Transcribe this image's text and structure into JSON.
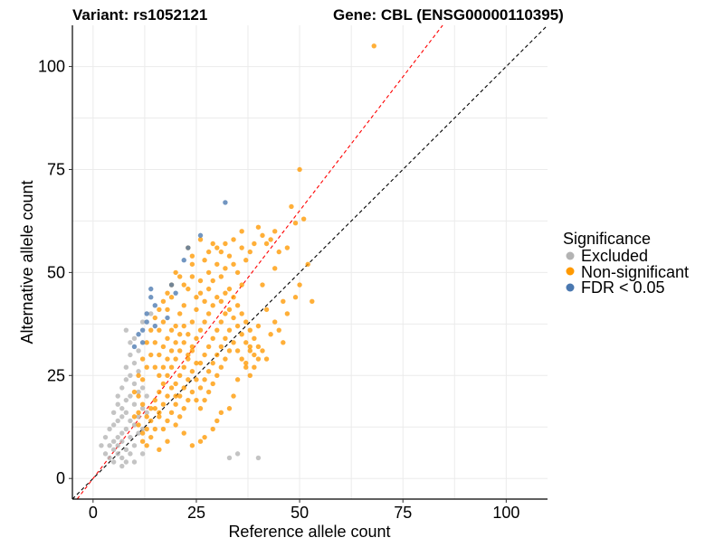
{
  "chart_data": {
    "type": "scatter",
    "title_left": "Variant: rs1052121",
    "title_right": "Gene: CBL (ENSG00000110395)",
    "xlabel": "Reference allele count",
    "ylabel": "Alternative allele count",
    "xlim": [
      -5,
      110
    ],
    "ylim": [
      -5,
      110
    ],
    "xticks": [
      0,
      25,
      50,
      75,
      100
    ],
    "yticks": [
      0,
      25,
      50,
      75,
      100
    ],
    "grid": true,
    "legend": {
      "title": "Significance",
      "placement": "right",
      "entries": [
        {
          "label": "Excluded",
          "color": "#b3b3b3"
        },
        {
          "label": "Non-significant",
          "color": "#ff9900"
        },
        {
          "label": "FDR < 0.05",
          "color": "#4a78b0"
        }
      ]
    },
    "reference_lines": [
      {
        "name": "identity",
        "slope": 1,
        "intercept": 0,
        "color": "#000000",
        "dash": true
      },
      {
        "name": "fit",
        "slope": 1.3,
        "intercept": 0,
        "color": "#ff0000",
        "dash": true
      }
    ],
    "series": [
      {
        "name": "Excluded",
        "color": "#b3b3b3",
        "points": [
          [
            2,
            8
          ],
          [
            3,
            6
          ],
          [
            3,
            10
          ],
          [
            4,
            5
          ],
          [
            4,
            8
          ],
          [
            4,
            12
          ],
          [
            5,
            4
          ],
          [
            5,
            7
          ],
          [
            5,
            9
          ],
          [
            5,
            13
          ],
          [
            5,
            16
          ],
          [
            6,
            6
          ],
          [
            6,
            8
          ],
          [
            6,
            10
          ],
          [
            6,
            14
          ],
          [
            6,
            18
          ],
          [
            6,
            20
          ],
          [
            7,
            3
          ],
          [
            7,
            5
          ],
          [
            7,
            9
          ],
          [
            7,
            11
          ],
          [
            7,
            15
          ],
          [
            7,
            17
          ],
          [
            7,
            22
          ],
          [
            8,
            4
          ],
          [
            8,
            7
          ],
          [
            8,
            12
          ],
          [
            8,
            16
          ],
          [
            8,
            19
          ],
          [
            8,
            24
          ],
          [
            8,
            27
          ],
          [
            9,
            6
          ],
          [
            9,
            10
          ],
          [
            9,
            14
          ],
          [
            9,
            20
          ],
          [
            9,
            25
          ],
          [
            9,
            30
          ],
          [
            10,
            8
          ],
          [
            10,
            13
          ],
          [
            10,
            18
          ],
          [
            10,
            23
          ],
          [
            10,
            28
          ],
          [
            10,
            34
          ],
          [
            11,
            11
          ],
          [
            11,
            15
          ],
          [
            11,
            21
          ],
          [
            11,
            26
          ],
          [
            12,
            12
          ],
          [
            12,
            17
          ],
          [
            12,
            22
          ],
          [
            12,
            38
          ],
          [
            13,
            16
          ],
          [
            13,
            20
          ],
          [
            14,
            40
          ],
          [
            9,
            33
          ],
          [
            11,
            31
          ],
          [
            33,
            5
          ],
          [
            35,
            6
          ],
          [
            40,
            5
          ],
          [
            8,
            36
          ],
          [
            12,
            6
          ],
          [
            10,
            4
          ]
        ]
      },
      {
        "name": "Non-significant",
        "color": "#ff9900",
        "points": [
          [
            68,
            105
          ],
          [
            50,
            75
          ],
          [
            48,
            66
          ],
          [
            51,
            63
          ],
          [
            49,
            62
          ],
          [
            47,
            56
          ],
          [
            52,
            52
          ],
          [
            53,
            43
          ],
          [
            44,
            51
          ],
          [
            45,
            55
          ],
          [
            42,
            57
          ],
          [
            43,
            58
          ],
          [
            44,
            60
          ],
          [
            40,
            61
          ],
          [
            41,
            59
          ],
          [
            39,
            57
          ],
          [
            38,
            55
          ],
          [
            37,
            53
          ],
          [
            36,
            56
          ],
          [
            35,
            50
          ],
          [
            34,
            52
          ],
          [
            33,
            54
          ],
          [
            32,
            51
          ],
          [
            30,
            52
          ],
          [
            29,
            48
          ],
          [
            28,
            50
          ],
          [
            31,
            49
          ],
          [
            36,
            47
          ],
          [
            41,
            47
          ],
          [
            46,
            43
          ],
          [
            47,
            40
          ],
          [
            49,
            44
          ],
          [
            50,
            47
          ],
          [
            42,
            41
          ],
          [
            44,
            38
          ],
          [
            45,
            36
          ],
          [
            46,
            33
          ],
          [
            40,
            37
          ],
          [
            43,
            35
          ],
          [
            38,
            32
          ],
          [
            39,
            30
          ],
          [
            37,
            28
          ],
          [
            35,
            24
          ],
          [
            34,
            20
          ],
          [
            33,
            17
          ],
          [
            31,
            16
          ],
          [
            30,
            14
          ],
          [
            29,
            12
          ],
          [
            27,
            10
          ],
          [
            26,
            9
          ],
          [
            24,
            8
          ],
          [
            22,
            11
          ],
          [
            20,
            13
          ],
          [
            18,
            9
          ],
          [
            16,
            7
          ],
          [
            14,
            10
          ],
          [
            13,
            8
          ],
          [
            15,
            12
          ],
          [
            12,
            9
          ],
          [
            11,
            13
          ],
          [
            23,
            46
          ],
          [
            24,
            49
          ],
          [
            25,
            44
          ],
          [
            22,
            42
          ],
          [
            21,
            40
          ],
          [
            19,
            44
          ],
          [
            18,
            41
          ],
          [
            17,
            38
          ],
          [
            16,
            36
          ],
          [
            15,
            39
          ],
          [
            20,
            37
          ],
          [
            26,
            45
          ],
          [
            27,
            43
          ],
          [
            28,
            46
          ],
          [
            25,
            41
          ],
          [
            24,
            38
          ],
          [
            23,
            35
          ],
          [
            22,
            33
          ],
          [
            21,
            31
          ],
          [
            20,
            29
          ],
          [
            19,
            27
          ],
          [
            18,
            25
          ],
          [
            17,
            23
          ],
          [
            16,
            21
          ],
          [
            15,
            19
          ],
          [
            14,
            17
          ],
          [
            13,
            15
          ],
          [
            12,
            18
          ],
          [
            11,
            20
          ],
          [
            12,
            24
          ],
          [
            13,
            27
          ],
          [
            14,
            30
          ],
          [
            15,
            33
          ],
          [
            16,
            30
          ],
          [
            17,
            32
          ],
          [
            18,
            34
          ],
          [
            19,
            36
          ],
          [
            20,
            33
          ],
          [
            21,
            35
          ],
          [
            22,
            37
          ],
          [
            23,
            30
          ],
          [
            24,
            32
          ],
          [
            25,
            34
          ],
          [
            26,
            36
          ],
          [
            27,
            38
          ],
          [
            28,
            40
          ],
          [
            29,
            42
          ],
          [
            30,
            44
          ],
          [
            31,
            43
          ],
          [
            32,
            45
          ],
          [
            33,
            46
          ],
          [
            34,
            44
          ],
          [
            35,
            42
          ],
          [
            36,
            40
          ],
          [
            37,
            38
          ],
          [
            38,
            36
          ],
          [
            39,
            34
          ],
          [
            40,
            32
          ],
          [
            41,
            31
          ],
          [
            42,
            29
          ],
          [
            26,
            28
          ],
          [
            27,
            30
          ],
          [
            28,
            32
          ],
          [
            29,
            34
          ],
          [
            30,
            36
          ],
          [
            31,
            38
          ],
          [
            32,
            40
          ],
          [
            33,
            41
          ],
          [
            34,
            39
          ],
          [
            35,
            37
          ],
          [
            36,
            35
          ],
          [
            37,
            33
          ],
          [
            38,
            31
          ],
          [
            24,
            26
          ],
          [
            25,
            28
          ],
          [
            23,
            24
          ],
          [
            22,
            22
          ],
          [
            21,
            20
          ],
          [
            20,
            18
          ],
          [
            19,
            16
          ],
          [
            18,
            14
          ],
          [
            17,
            12
          ],
          [
            16,
            15
          ],
          [
            15,
            17
          ],
          [
            14,
            14
          ],
          [
            13,
            12
          ],
          [
            12,
            11
          ],
          [
            11,
            16
          ],
          [
            10,
            15
          ],
          [
            10,
            21
          ],
          [
            11,
            25
          ],
          [
            12,
            29
          ],
          [
            13,
            33
          ],
          [
            14,
            36
          ],
          [
            15,
            27
          ],
          [
            16,
            25
          ],
          [
            17,
            27
          ],
          [
            18,
            29
          ],
          [
            19,
            31
          ],
          [
            20,
            23
          ],
          [
            21,
            25
          ],
          [
            22,
            27
          ],
          [
            23,
            29
          ],
          [
            24,
            31
          ],
          [
            25,
            24
          ],
          [
            26,
            22
          ],
          [
            27,
            24
          ],
          [
            28,
            26
          ],
          [
            29,
            28
          ],
          [
            30,
            30
          ],
          [
            31,
            32
          ],
          [
            32,
            34
          ],
          [
            33,
            36
          ],
          [
            34,
            33
          ],
          [
            35,
            31
          ],
          [
            36,
            29
          ],
          [
            37,
            27
          ],
          [
            38,
            25
          ],
          [
            39,
            27
          ],
          [
            40,
            29
          ],
          [
            30,
            25
          ],
          [
            31,
            27
          ],
          [
            32,
            29
          ],
          [
            33,
            31
          ],
          [
            28,
            21
          ],
          [
            29,
            23
          ],
          [
            27,
            19
          ],
          [
            26,
            17
          ],
          [
            25,
            19
          ],
          [
            24,
            21
          ],
          [
            23,
            19
          ],
          [
            22,
            17
          ],
          [
            21,
            15
          ],
          [
            20,
            20
          ],
          [
            19,
            22
          ],
          [
            18,
            20
          ],
          [
            17,
            18
          ],
          [
            16,
            16
          ],
          [
            22,
            47
          ],
          [
            21,
            49
          ],
          [
            19,
            47
          ],
          [
            18,
            45
          ],
          [
            20,
            50
          ],
          [
            24,
            52
          ],
          [
            26,
            48
          ],
          [
            23,
            56
          ],
          [
            24,
            54
          ],
          [
            17,
            43
          ],
          [
            16,
            41
          ],
          [
            27,
            53
          ],
          [
            28,
            55
          ],
          [
            29,
            57
          ],
          [
            30,
            56
          ],
          [
            31,
            55
          ],
          [
            32,
            57
          ],
          [
            26,
            58
          ],
          [
            34,
            58
          ],
          [
            36,
            60
          ]
        ]
      },
      {
        "name": "FDR < 0.05",
        "color": "#4a78b0",
        "points": [
          [
            32,
            67
          ],
          [
            26,
            59
          ],
          [
            23,
            56
          ],
          [
            22,
            53
          ],
          [
            19,
            47
          ],
          [
            20,
            45
          ],
          [
            14,
            46
          ],
          [
            14,
            44
          ],
          [
            15,
            42
          ],
          [
            13,
            40
          ],
          [
            13,
            38
          ],
          [
            12,
            36
          ],
          [
            11,
            35
          ],
          [
            12,
            33
          ],
          [
            10,
            32
          ],
          [
            15,
            37
          ],
          [
            18,
            39
          ]
        ]
      }
    ]
  }
}
